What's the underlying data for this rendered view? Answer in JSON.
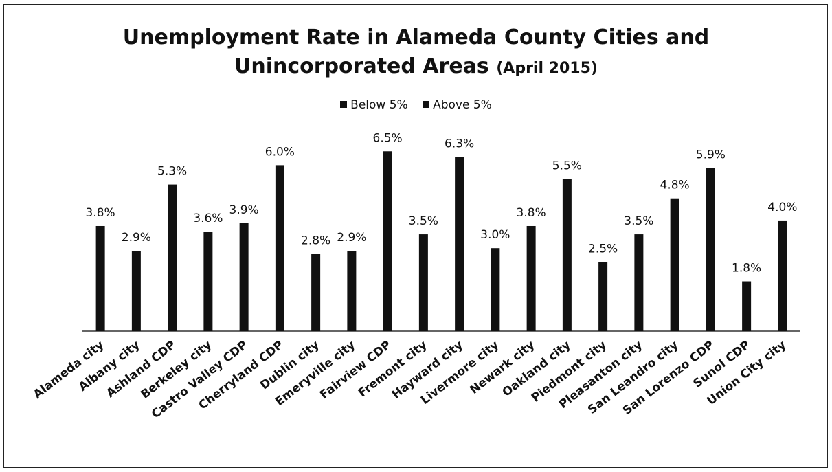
{
  "chart_data": {
    "type": "bar",
    "title": "Unemployment Rate in Alameda County Cities and",
    "title_line2": "Unincorporated Areas",
    "title_suffix": "(April 2015)",
    "legend": [
      "Below 5%",
      "Above 5%"
    ],
    "legend_placement": "top-center",
    "grid": false,
    "ylim": [
      0,
      7.5
    ],
    "categories": [
      "Alameda city",
      "Albany city",
      "Ashland CDP",
      "Berkeley city",
      "Castro Valley CDP",
      "Cherryland CDP",
      "Dublin city",
      "Emeryville city",
      "Fairview CDP",
      "Fremont city",
      "Hayward city",
      "Livermore city",
      "Newark city",
      "Oakland city",
      "Piedmont city",
      "Pleasanton city",
      "San Leandro city",
      "San Lorenzo CDP",
      "Sunol CDP",
      "Union City city"
    ],
    "values": [
      3.8,
      2.9,
      5.3,
      3.6,
      3.9,
      6.0,
      2.8,
      2.9,
      6.5,
      3.5,
      6.3,
      3.0,
      3.8,
      5.5,
      2.5,
      3.5,
      4.8,
      5.9,
      1.8,
      4.0
    ],
    "labels": [
      "3.8%",
      "2.9%",
      "5.3%",
      "3.6%",
      "3.9%",
      "6.0%",
      "2.8%",
      "2.9%",
      "6.5%",
      "3.5%",
      "6.3%",
      "3.0%",
      "3.8%",
      "5.5%",
      "2.5%",
      "3.5%",
      "4.8%",
      "5.9%",
      "1.8%",
      "4.0%"
    ],
    "colors": {
      "bar": "#111111",
      "axis": "#333333"
    }
  }
}
